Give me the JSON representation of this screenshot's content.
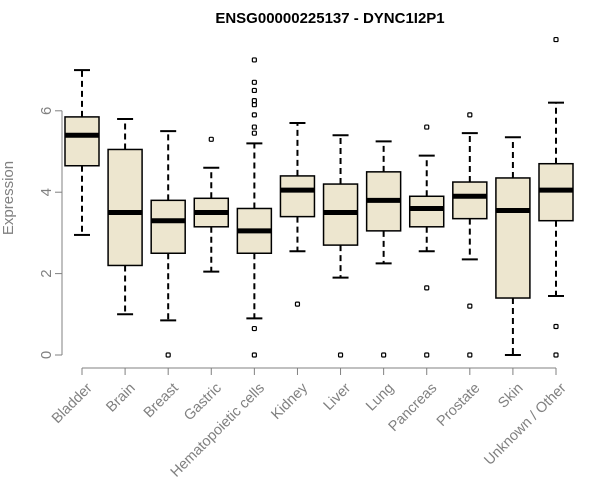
{
  "chart_data": {
    "type": "boxplot",
    "title": "ENSG00000225137 - DYNC1I2P1",
    "xlabel": "",
    "ylabel": "Expression",
    "ylim": [
      0,
      7.8
    ],
    "yticks": [
      0,
      2,
      4,
      6
    ],
    "colors": {
      "box_fill": "#ede6cf",
      "box_stroke": "#000000",
      "axis": "#808080",
      "text": "#808080"
    },
    "categories": [
      "Bladder",
      "Brain",
      "Breast",
      "Gastric",
      "Hematopoietic cells",
      "Kidney",
      "Liver",
      "Lung",
      "Pancreas",
      "Prostate",
      "Skin",
      "Unknown / Other"
    ],
    "boxes": [
      {
        "whisker_low": 2.95,
        "q1": 4.65,
        "median": 5.4,
        "q3": 5.85,
        "whisker_high": 7.0,
        "outliers": []
      },
      {
        "whisker_low": 1.0,
        "q1": 2.2,
        "median": 3.5,
        "q3": 5.05,
        "whisker_high": 5.8,
        "outliers": []
      },
      {
        "whisker_low": 0.85,
        "q1": 2.5,
        "median": 3.3,
        "q3": 3.8,
        "whisker_high": 5.5,
        "outliers": [
          0.0
        ]
      },
      {
        "whisker_low": 2.05,
        "q1": 3.15,
        "median": 3.5,
        "q3": 3.85,
        "whisker_high": 4.6,
        "outliers": [
          5.3
        ]
      },
      {
        "whisker_low": 0.9,
        "q1": 2.5,
        "median": 3.05,
        "q3": 3.6,
        "whisker_high": 5.2,
        "outliers": [
          0.0,
          0.65,
          5.45,
          5.6,
          5.9,
          6.15,
          6.25,
          6.5,
          6.7,
          7.25
        ]
      },
      {
        "whisker_low": 2.55,
        "q1": 3.4,
        "median": 4.05,
        "q3": 4.4,
        "whisker_high": 5.7,
        "outliers": [
          1.25
        ]
      },
      {
        "whisker_low": 1.9,
        "q1": 2.7,
        "median": 3.5,
        "q3": 4.2,
        "whisker_high": 5.4,
        "outliers": [
          0.0
        ]
      },
      {
        "whisker_low": 2.25,
        "q1": 3.05,
        "median": 3.8,
        "q3": 4.5,
        "whisker_high": 5.25,
        "outliers": [
          0.0
        ]
      },
      {
        "whisker_low": 2.55,
        "q1": 3.15,
        "median": 3.6,
        "q3": 3.9,
        "whisker_high": 4.9,
        "outliers": [
          0.0,
          1.65,
          5.6
        ]
      },
      {
        "whisker_low": 2.35,
        "q1": 3.35,
        "median": 3.9,
        "q3": 4.25,
        "whisker_high": 5.45,
        "outliers": [
          0.0,
          1.2,
          5.9
        ]
      },
      {
        "whisker_low": 0.0,
        "q1": 1.4,
        "median": 3.55,
        "q3": 4.35,
        "whisker_high": 5.35,
        "outliers": []
      },
      {
        "whisker_low": 1.45,
        "q1": 3.3,
        "median": 4.05,
        "q3": 4.7,
        "whisker_high": 6.2,
        "outliers": [
          0.0,
          0.7,
          7.75
        ]
      }
    ],
    "grid": false,
    "legend": "none"
  }
}
